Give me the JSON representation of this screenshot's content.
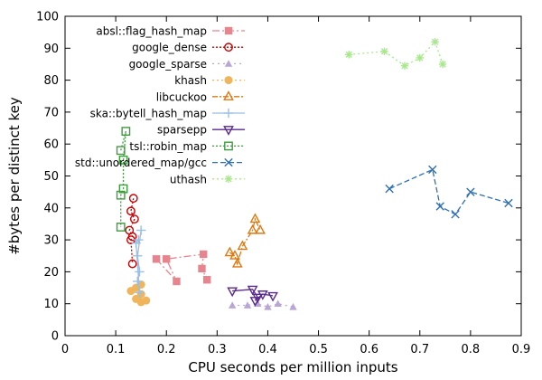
{
  "chart_data": {
    "type": "scatter",
    "title": "",
    "xlabel": "CPU seconds per million inputs",
    "ylabel": "#bytes per distinct key",
    "xlim": [
      0,
      0.9
    ],
    "ylim": [
      0,
      100
    ],
    "xticks": [
      "0",
      "0.1",
      "0.2",
      "0.3",
      "0.4",
      "0.5",
      "0.6",
      "0.7",
      "0.8",
      "0.9"
    ],
    "yticks": [
      "0",
      "10",
      "20",
      "30",
      "40",
      "50",
      "60",
      "70",
      "80",
      "90",
      "100"
    ],
    "grid": false,
    "legend_position": "top-left",
    "series": [
      {
        "name": "absl::flag_hash_map",
        "color": "#e8848e",
        "marker": "square-filled",
        "dash": "8,3,2,3",
        "points": [
          [
            0.18,
            24
          ],
          [
            0.22,
            17
          ],
          [
            0.2,
            24
          ],
          [
            0.273,
            25.5
          ],
          [
            0.27,
            21
          ],
          [
            0.28,
            17.5
          ]
        ]
      },
      {
        "name": "google_dense",
        "color": "#c80000",
        "marker": "circle-open",
        "dash": "2,2",
        "points": [
          [
            0.135,
            43
          ],
          [
            0.13,
            39
          ],
          [
            0.137,
            36.5
          ],
          [
            0.127,
            33
          ],
          [
            0.133,
            31
          ],
          [
            0.13,
            30
          ],
          [
            0.133,
            22.5
          ]
        ]
      },
      {
        "name": "google_sparse",
        "color": "#b9a5d6",
        "marker": "triangle-filled",
        "dash": "2,4",
        "points": [
          [
            0.33,
            9.5
          ],
          [
            0.36,
            9.5
          ],
          [
            0.38,
            10
          ],
          [
            0.4,
            9
          ],
          [
            0.42,
            10
          ],
          [
            0.45,
            9
          ]
        ]
      },
      {
        "name": "khash",
        "color": "#f0b45a",
        "marker": "circle-filled",
        "dash": "2,3",
        "points": [
          [
            0.13,
            14
          ],
          [
            0.14,
            15
          ],
          [
            0.15,
            16
          ],
          [
            0.15,
            13
          ],
          [
            0.16,
            11
          ],
          [
            0.15,
            10.5
          ],
          [
            0.14,
            11.5
          ]
        ]
      },
      {
        "name": "libcuckoo",
        "color": "#e0780f",
        "marker": "triangle-open",
        "dash": "6,2,2,2",
        "points": [
          [
            0.325,
            26
          ],
          [
            0.335,
            25
          ],
          [
            0.34,
            22.5
          ],
          [
            0.35,
            28
          ],
          [
            0.37,
            33
          ],
          [
            0.375,
            36.5
          ],
          [
            0.385,
            33
          ]
        ]
      },
      {
        "name": "ska::bytell_hash_map",
        "color": "#9bbfe3",
        "marker": "plus",
        "dash": "",
        "points": [
          [
            0.15,
            33
          ],
          [
            0.143,
            25
          ],
          [
            0.147,
            20
          ],
          [
            0.143,
            17
          ],
          [
            0.147,
            13.5
          ],
          [
            0.14,
            29
          ],
          [
            0.145,
            30
          ]
        ]
      },
      {
        "name": "sparsepp",
        "color": "#5a2a8c",
        "marker": "triangle-down-open",
        "dash": "",
        "points": [
          [
            0.33,
            14
          ],
          [
            0.37,
            14.5
          ],
          [
            0.38,
            12
          ],
          [
            0.375,
            11
          ],
          [
            0.39,
            13
          ],
          [
            0.41,
            12.5
          ]
        ]
      },
      {
        "name": "tsl::robin_map",
        "color": "#3c9e3c",
        "marker": "square-open",
        "dash": "2,2",
        "points": [
          [
            0.11,
            58
          ],
          [
            0.12,
            64
          ],
          [
            0.115,
            55
          ],
          [
            0.115,
            46
          ],
          [
            0.11,
            44
          ],
          [
            0.11,
            34
          ]
        ]
      },
      {
        "name": "std::unordered_map/gcc",
        "color": "#2f6fb0",
        "marker": "x",
        "dash": "6,3",
        "points": [
          [
            0.64,
            46
          ],
          [
            0.725,
            52
          ],
          [
            0.74,
            40.5
          ],
          [
            0.77,
            38
          ],
          [
            0.8,
            45
          ],
          [
            0.875,
            41.5
          ]
        ]
      },
      {
        "name": "uthash",
        "color": "#a8e88c",
        "marker": "star",
        "dash": "2,3",
        "points": [
          [
            0.56,
            88
          ],
          [
            0.63,
            89
          ],
          [
            0.67,
            84.5
          ],
          [
            0.7,
            87
          ],
          [
            0.73,
            92
          ],
          [
            0.745,
            85
          ]
        ]
      }
    ]
  }
}
